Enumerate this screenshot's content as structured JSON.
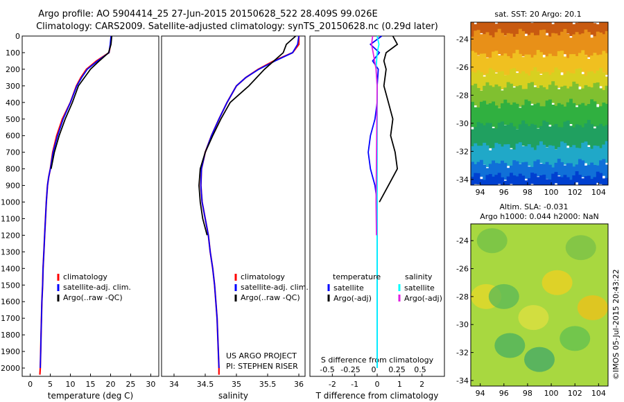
{
  "header": {
    "line1": "Argo profile: AO 5904414_25 27-Jun-2015 20150628_522 28.409S 99.026E",
    "line2": "Climatology: CARS2009. Satellite-adjusted climatology: synTS_20150628.nc (0.29d later)"
  },
  "side_stamp": "©IMOS 05-Jul-2015 20:43:22",
  "chart_data": [
    {
      "type": "line",
      "panel": "temperature",
      "xlabel": "temperature (deg C)",
      "ylabel": "",
      "xlim": [
        -2,
        32
      ],
      "ylim": [
        2050,
        0
      ],
      "xticks": [
        0,
        5,
        10,
        15,
        20,
        25,
        30
      ],
      "yticks": [
        0,
        100,
        200,
        300,
        400,
        500,
        600,
        700,
        800,
        900,
        1000,
        1100,
        1200,
        1300,
        1400,
        1500,
        1600,
        1700,
        1800,
        1900,
        2000
      ],
      "grid": false,
      "legend": {
        "position": "lower-center",
        "entries": [
          "climatology",
          "satellite-adj. clim.",
          "Argo(..raw -QC)"
        ]
      },
      "series": [
        {
          "name": "climatology",
          "color": "#ff0000",
          "x": [
            20.2,
            20.0,
            19.6,
            16.5,
            14.0,
            12.6,
            11.5,
            10.0,
            8.0,
            6.6,
            5.6,
            5.0,
            4.6,
            4.3,
            4.0,
            3.8,
            3.6,
            3.4,
            3.2,
            3.1,
            2.9,
            2.8,
            2.7,
            2.6,
            2.5,
            2.4
          ],
          "y": [
            0,
            50,
            100,
            150,
            200,
            250,
            300,
            400,
            500,
            600,
            700,
            800,
            850,
            900,
            1000,
            1100,
            1200,
            1300,
            1400,
            1500,
            1600,
            1700,
            1800,
            1900,
            2000,
            2040
          ]
        },
        {
          "name": "satellite-adj. clim.",
          "color": "#0000ff",
          "x": [
            20.1,
            19.9,
            19.6,
            16.8,
            14.2,
            12.8,
            11.6,
            10.0,
            8.2,
            6.8,
            5.7,
            5.0,
            4.6,
            4.3,
            4.0,
            3.8,
            3.6,
            3.4,
            3.2,
            3.1,
            2.9,
            2.8,
            2.7,
            2.6,
            2.5
          ],
          "y": [
            0,
            50,
            100,
            150,
            200,
            250,
            300,
            400,
            500,
            600,
            700,
            800,
            850,
            900,
            1000,
            1100,
            1200,
            1300,
            1400,
            1500,
            1600,
            1700,
            1800,
            1900,
            2000
          ]
        },
        {
          "name": "Argo(..raw -QC)",
          "color": "#000000",
          "x": [
            20.3,
            20.1,
            19.5,
            17.2,
            15.0,
            13.5,
            12.0,
            10.5,
            8.7,
            7.2,
            6.0,
            5.2
          ],
          "y": [
            0,
            50,
            100,
            150,
            200,
            250,
            300,
            400,
            500,
            600,
            700,
            800
          ]
        }
      ]
    },
    {
      "type": "line",
      "panel": "salinity",
      "xlabel": "salinity",
      "ylabel": "",
      "xlim": [
        33.8,
        36.1
      ],
      "ylim": [
        2050,
        0
      ],
      "xticks": [
        34,
        34.5,
        35,
        35.5,
        36
      ],
      "xtick_labels": [
        "34",
        "34.5",
        "35",
        "35.5",
        "36"
      ],
      "grid": false,
      "legend": {
        "position": "lower-center",
        "entries": [
          "climatology",
          "satellite-adj. clim.",
          "Argo(..raw -QC)"
        ]
      },
      "annotations": [
        "US ARGO PROJECT",
        "PI: STEPHEN RISER"
      ],
      "series": [
        {
          "name": "climatology",
          "color": "#ff0000",
          "x": [
            36.0,
            36.0,
            35.9,
            35.6,
            35.35,
            35.15,
            35.0,
            34.85,
            34.72,
            34.6,
            34.5,
            34.44,
            34.43,
            34.45,
            34.5,
            34.55,
            34.58,
            34.62,
            34.65,
            34.67,
            34.69,
            34.7,
            34.71,
            34.72,
            34.72
          ],
          "y": [
            0,
            50,
            100,
            150,
            200,
            250,
            300,
            400,
            500,
            600,
            700,
            800,
            900,
            1000,
            1100,
            1200,
            1300,
            1400,
            1500,
            1600,
            1700,
            1800,
            1900,
            2000,
            2040
          ]
        },
        {
          "name": "satellite-adj. clim.",
          "color": "#0000ff",
          "x": [
            36.0,
            35.98,
            35.9,
            35.62,
            35.36,
            35.15,
            35.0,
            34.85,
            34.72,
            34.6,
            34.5,
            34.44,
            34.43,
            34.45,
            34.5,
            34.55,
            34.58,
            34.62,
            34.65,
            34.67,
            34.69,
            34.7,
            34.71,
            34.72
          ],
          "y": [
            0,
            50,
            100,
            150,
            200,
            250,
            300,
            400,
            500,
            600,
            700,
            800,
            900,
            1000,
            1100,
            1200,
            1300,
            1400,
            1500,
            1600,
            1700,
            1800,
            1900,
            2000
          ]
        },
        {
          "name": "Argo(..raw -QC)",
          "color": "#000000",
          "x": [
            35.95,
            35.8,
            35.75,
            35.45,
            35.2,
            35.05,
            34.9,
            34.75,
            34.62,
            34.5,
            34.42,
            34.4,
            34.42,
            34.46,
            34.53
          ],
          "y": [
            0,
            50,
            100,
            200,
            300,
            350,
            400,
            500,
            600,
            700,
            800,
            900,
            1000,
            1100,
            1200
          ]
        }
      ]
    },
    {
      "type": "line",
      "panel": "difference",
      "xlabel": "T difference from climatology",
      "xlabel_secondary": "S difference from climatology",
      "xlim": [
        -3,
        3
      ],
      "ylim": [
        2050,
        0
      ],
      "xticks": [
        -2,
        -1,
        0,
        1,
        2
      ],
      "xticks_secondary": [
        -0.5,
        -0.25,
        0,
        0.25,
        0.5
      ],
      "grid": false,
      "legend": {
        "position": "lower",
        "groups": [
          {
            "title": "temperature",
            "entries": [
              "satellite",
              "Argo(-adj)"
            ]
          },
          {
            "title": "salinity",
            "entries": [
              "satellite",
              "Argo(-adj)"
            ]
          }
        ]
      },
      "series": [
        {
          "name": "temperature satellite",
          "color": "#0000ff",
          "x": [
            0.2,
            -0.3,
            0.1,
            -0.2,
            0.05,
            0.0,
            0.0,
            -0.1,
            -0.3,
            -0.4,
            -0.3,
            -0.1,
            0.0,
            0.0,
            0.0,
            0.0,
            0.0,
            0.0,
            0.0,
            0.0,
            0.0
          ],
          "y": [
            0,
            50,
            100,
            150,
            200,
            300,
            400,
            500,
            600,
            700,
            800,
            900,
            1000,
            1100,
            1200,
            1300,
            1400,
            1500,
            1600,
            1700,
            2000
          ]
        },
        {
          "name": "temperature Argo(-adj)",
          "color": "#000000",
          "x": [
            0.7,
            0.9,
            0.4,
            0.3,
            0.4,
            0.3,
            0.5,
            0.7,
            0.6,
            0.8,
            0.9,
            0.5,
            0.1
          ],
          "y": [
            0,
            50,
            100,
            150,
            200,
            300,
            400,
            500,
            600,
            700,
            800,
            900,
            1000
          ]
        },
        {
          "name": "salinity satellite",
          "color": "#00ffff",
          "x": [
            0.0,
            0.08,
            0.0,
            -0.05,
            0.0,
            0.0,
            0.0,
            0.0,
            0.0,
            0.0,
            0.0,
            0.0,
            0.0,
            0.0,
            0.0,
            0.0,
            0.0,
            0.0,
            0.0,
            0.0
          ],
          "y": [
            0,
            50,
            100,
            200,
            300,
            400,
            500,
            600,
            700,
            800,
            900,
            1000,
            1100,
            1200,
            1300,
            1400,
            1500,
            1600,
            1800,
            2000
          ]
        },
        {
          "name": "salinity Argo(-adj)",
          "color": "#e020e0",
          "x": [
            -0.2,
            -0.25,
            -0.18,
            -0.05,
            0.0,
            -0.05,
            -0.03
          ],
          "y": [
            0,
            50,
            100,
            200,
            300,
            1000,
            1200
          ]
        }
      ]
    },
    {
      "type": "heatmap",
      "panel": "sat-sst-map",
      "title": "sat. SST: 20  Argo: 20.1",
      "xlim": [
        93.2,
        104.8
      ],
      "ylim": [
        -34.4,
        -22.8
      ],
      "xticks": [
        94,
        96,
        98,
        100,
        102,
        104
      ],
      "yticks": [
        -24,
        -26,
        -28,
        -30,
        -32,
        -34
      ],
      "colors_by_latitude": [
        {
          "lat": -23,
          "color": "#c85a10"
        },
        {
          "lat": -24.5,
          "color": "#e89018"
        },
        {
          "lat": -26,
          "color": "#f0c020"
        },
        {
          "lat": -27,
          "color": "#d8d020"
        },
        {
          "lat": -28,
          "color": "#80c030"
        },
        {
          "lat": -29.5,
          "color": "#30b040"
        },
        {
          "lat": -31,
          "color": "#20a060"
        },
        {
          "lat": -32.5,
          "color": "#20a8c8"
        },
        {
          "lat": -33.5,
          "color": "#1070d8"
        },
        {
          "lat": -34.3,
          "color": "#0040d0"
        }
      ]
    },
    {
      "type": "heatmap",
      "panel": "altim-sla-map",
      "title": "Altim. SLA: -0.031",
      "subtitle": "Argo h1000: 0.044 h2000: NaN",
      "xlim": [
        93.2,
        104.8
      ],
      "ylim": [
        -34.4,
        -22.8
      ],
      "xticks": [
        94,
        96,
        98,
        100,
        102,
        104
      ],
      "yticks": [
        -24,
        -26,
        -28,
        -30,
        -32,
        -34
      ],
      "base_color": "#a8d840",
      "blobs": [
        {
          "lon": 100.5,
          "lat": -27.0,
          "color": "#f0d020"
        },
        {
          "lon": 103.5,
          "lat": -28.8,
          "color": "#f0c018"
        },
        {
          "lon": 94.5,
          "lat": -28.0,
          "color": "#e8d828"
        },
        {
          "lon": 98.5,
          "lat": -29.5,
          "color": "#e0e040"
        },
        {
          "lon": 96.0,
          "lat": -28.0,
          "color": "#58b858"
        },
        {
          "lon": 96.5,
          "lat": -31.5,
          "color": "#48b060"
        },
        {
          "lon": 99.0,
          "lat": -32.5,
          "color": "#40a868"
        },
        {
          "lon": 102.0,
          "lat": -31.0,
          "color": "#60c050"
        },
        {
          "lon": 95.0,
          "lat": -24.0,
          "color": "#70c048"
        },
        {
          "lon": 102.5,
          "lat": -24.5,
          "color": "#78c048"
        }
      ]
    }
  ]
}
